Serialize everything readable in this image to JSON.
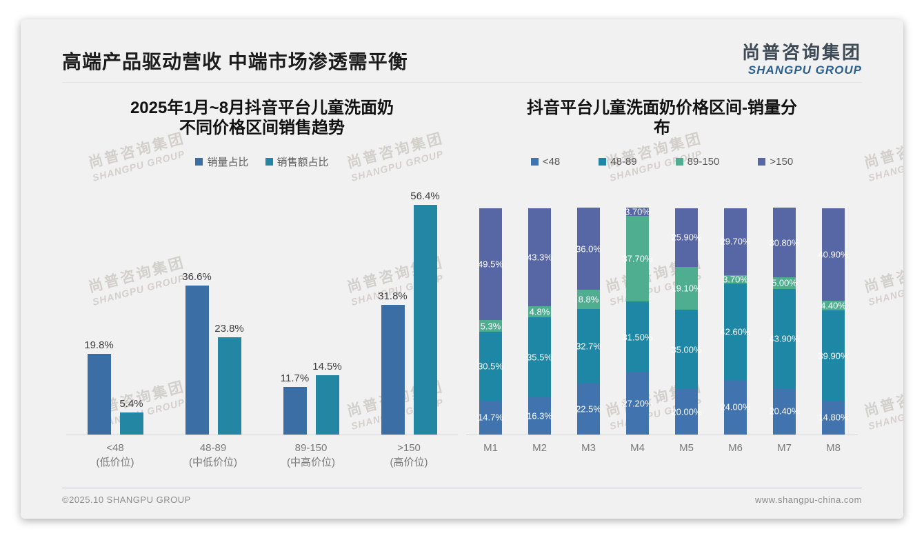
{
  "slide": {
    "header": {
      "title": "高端产品驱动营收 中端市场渗透需平衡",
      "logo_cn": "尚普咨询集团",
      "logo_en": "SHANGPU GROUP"
    },
    "watermark": {
      "line1": "尚普咨询集团",
      "line2": "SHANGPU GROUP"
    },
    "footer": {
      "left": "©2025.10 SHANGPU GROUP",
      "right": "www.shangpu-china.com"
    }
  },
  "chart_data": [
    {
      "type": "bar",
      "title": "2025年1月~8月抖音平台儿童洗面奶\n不同价格区间销售趋势",
      "categories": [
        "<48",
        "48-89",
        "89-150",
        ">150"
      ],
      "category_sublabels": [
        "(低价位)",
        "(中低价位)",
        "(中高价位)",
        "(高价位)"
      ],
      "series": [
        {
          "name": "销量占比",
          "color": "#3a6ea5",
          "values": [
            19.8,
            36.6,
            11.7,
            31.8
          ],
          "labels": [
            "19.8%",
            "36.6%",
            "11.7%",
            "31.8%"
          ]
        },
        {
          "name": "销售额占比",
          "color": "#2386a3",
          "values": [
            5.4,
            23.8,
            14.5,
            56.4
          ],
          "labels": [
            "5.4%",
            "23.8%",
            "14.5%",
            "56.4%"
          ]
        }
      ],
      "ylim": [
        0,
        60
      ],
      "grid": false,
      "legend_position": "top",
      "value_label_position": "above-bar"
    },
    {
      "type": "bar",
      "stacked": true,
      "title": "抖音平台儿童洗面奶价格区间-销量分\n布",
      "categories": [
        "M1",
        "M2",
        "M3",
        "M4",
        "M5",
        "M6",
        "M7",
        "M8"
      ],
      "series": [
        {
          "name": "<48",
          "color": "#4174ae",
          "values": [
            14.7,
            16.3,
            22.5,
            27.2,
            20.0,
            24.0,
            20.4,
            14.8
          ],
          "labels": [
            "14.7%",
            "16.3%",
            "22.5%",
            "27.20%",
            "20.00%",
            "24.00%",
            "20.40%",
            "14.80%"
          ]
        },
        {
          "name": "48-89",
          "color": "#1e87a5",
          "values": [
            30.5,
            35.5,
            32.7,
            31.5,
            35.0,
            42.6,
            43.9,
            39.9
          ],
          "labels": [
            "30.5%",
            "35.5%",
            "32.7%",
            "31.50%",
            "35.00%",
            "42.60%",
            "43.90%",
            "39.90%"
          ]
        },
        {
          "name": "89-150",
          "color": "#4fae90",
          "values": [
            5.3,
            4.8,
            8.8,
            37.7,
            19.1,
            3.7,
            5.0,
            4.4
          ],
          "labels": [
            "5.3%",
            "4.8%",
            "8.8%",
            "37.70%",
            "19.10%",
            "3.70%",
            "5.00%",
            "4.40%"
          ]
        },
        {
          "name": ">150",
          "color": "#5766a4",
          "values": [
            49.5,
            43.3,
            36.0,
            3.7,
            25.9,
            29.7,
            30.8,
            40.9
          ],
          "labels": [
            "49.5%",
            "43.3%",
            "36.0%",
            "3.70%",
            "25.90%",
            "29.70%",
            "30.80%",
            "40.90%"
          ]
        }
      ],
      "ylim": [
        0,
        100
      ],
      "grid": false,
      "legend_position": "top",
      "value_label_position": "inside-segment"
    }
  ]
}
